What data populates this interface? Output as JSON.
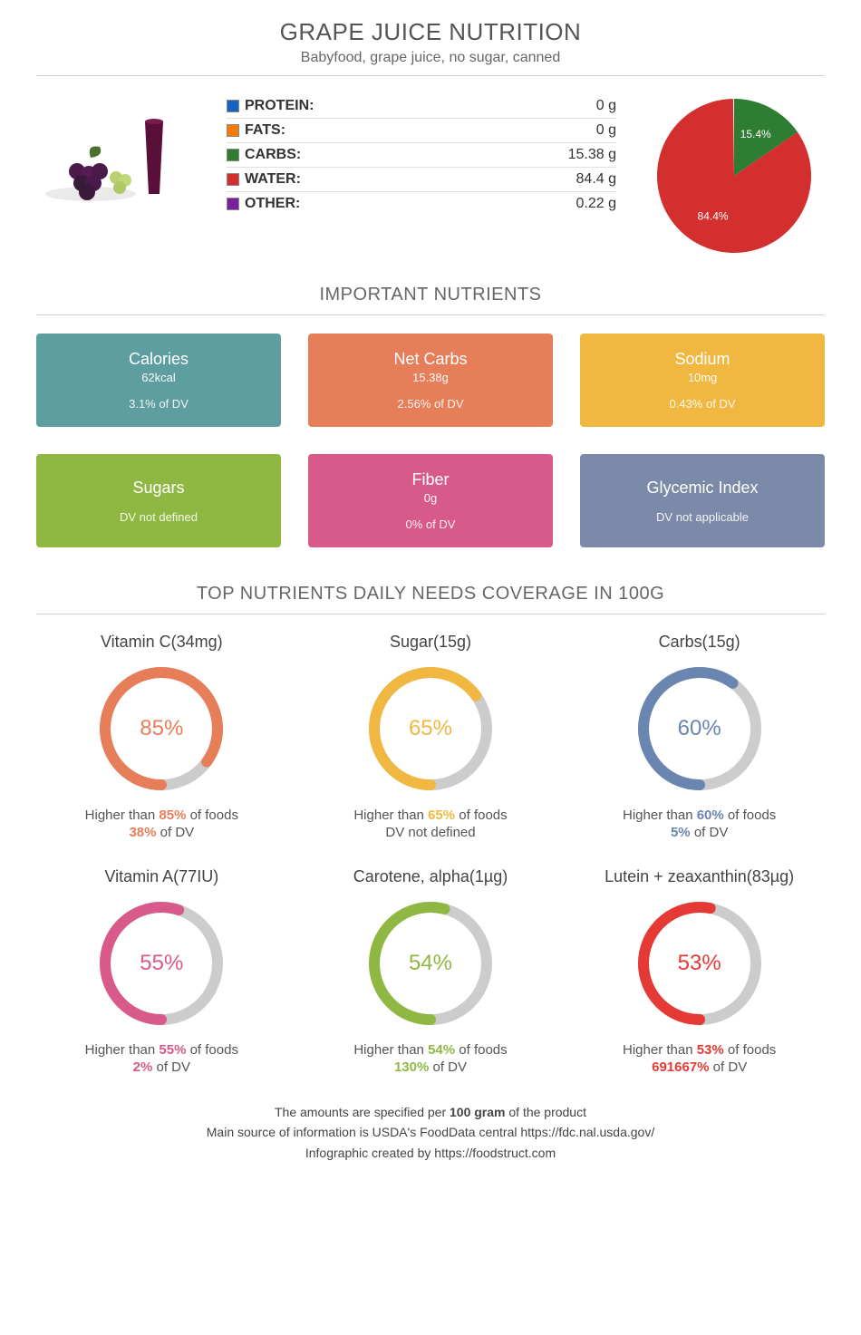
{
  "header": {
    "title": "GRAPE JUICE NUTRITION",
    "subtitle": "Babyfood, grape juice, no sugar, canned"
  },
  "macros": {
    "rows": [
      {
        "label": "PROTEIN:",
        "value": "0 g",
        "color": "#1565c0"
      },
      {
        "label": "FATS:",
        "value": "0 g",
        "color": "#f57c00"
      },
      {
        "label": "CARBS:",
        "value": "15.38 g",
        "color": "#2e7d32"
      },
      {
        "label": "WATER:",
        "value": "84.4 g",
        "color": "#d32f2f"
      },
      {
        "label": "OTHER:",
        "value": "0.22 g",
        "color": "#7b1fa2"
      }
    ],
    "pie": {
      "slices": [
        {
          "label": "15.4%",
          "pct": 15.4,
          "color": "#2e7d32",
          "label_color": "#ffffff"
        },
        {
          "label": "84.4%",
          "pct": 84.4,
          "color": "#d32f2f",
          "label_color": "#ffffff"
        }
      ],
      "other_pct": 0.22,
      "other_color": "#7b1fa2",
      "bg": "#ffffff",
      "radius": 85
    }
  },
  "important_title": "IMPORTANT NUTRIENTS",
  "cards": [
    {
      "name": "Calories",
      "value": "62kcal",
      "dv": "3.1% of DV",
      "bg": "#5f9ea0"
    },
    {
      "name": "Net Carbs",
      "value": "15.38g",
      "dv": "2.56% of DV",
      "bg": "#e67e5a"
    },
    {
      "name": "Sodium",
      "value": "10mg",
      "dv": "0.43% of DV",
      "bg": "#f0b840"
    },
    {
      "name": "Sugars",
      "value": "",
      "dv": "DV not defined",
      "bg": "#8fb843"
    },
    {
      "name": "Fiber",
      "value": "0g",
      "dv": "0% of DV",
      "bg": "#d85a8a"
    },
    {
      "name": "Glycemic Index",
      "value": "",
      "dv": "DV not applicable",
      "bg": "#7a8aa8"
    }
  ],
  "coverage_title": "TOP NUTRIENTS DAILY NEEDS COVERAGE IN 100G",
  "donuts": [
    {
      "title": "Vitamin C(34mg)",
      "pct": 85,
      "color": "#e67e5a",
      "pct_label": "85%",
      "line1_pre": "Higher than ",
      "line1_b": "85%",
      "line1_post": " of foods",
      "line2_b": "38%",
      "line2_post": " of DV",
      "line2_plain": ""
    },
    {
      "title": "Sugar(15g)",
      "pct": 65,
      "color": "#f0b840",
      "pct_label": "65%",
      "line1_pre": "Higher than ",
      "line1_b": "65%",
      "line1_post": " of foods",
      "line2_b": "",
      "line2_post": "",
      "line2_plain": "DV not defined"
    },
    {
      "title": "Carbs(15g)",
      "pct": 60,
      "color": "#6a85b0",
      "pct_label": "60%",
      "line1_pre": "Higher than ",
      "line1_b": "60%",
      "line1_post": " of foods",
      "line2_b": "5%",
      "line2_post": " of DV",
      "line2_plain": ""
    },
    {
      "title": "Vitamin A(77IU)",
      "pct": 55,
      "color": "#d85a8a",
      "pct_label": "55%",
      "line1_pre": "Higher than ",
      "line1_b": "55%",
      "line1_post": " of foods",
      "line2_b": "2%",
      "line2_post": " of DV",
      "line2_plain": ""
    },
    {
      "title": "Carotene, alpha(1µg)",
      "pct": 54,
      "color": "#8fb843",
      "pct_label": "54%",
      "line1_pre": "Higher than ",
      "line1_b": "54%",
      "line1_post": " of foods",
      "line2_b": "130%",
      "line2_post": " of DV",
      "line2_plain": ""
    },
    {
      "title": "Lutein + zeaxanthin(83µg)",
      "pct": 53,
      "color": "#e53935",
      "pct_label": "53%",
      "line1_pre": "Higher than ",
      "line1_b": "53%",
      "line1_post": " of foods",
      "line2_b": "691667%",
      "line2_post": " of DV",
      "line2_plain": ""
    }
  ],
  "donut_track_color": "#cccccc",
  "donut_stroke_width": 12,
  "footer": {
    "line1_pre": "The amounts are specified per ",
    "line1_b": "100 gram",
    "line1_post": " of the product",
    "line2": "Main source of information is USDA's FoodData central https://fdc.nal.usda.gov/",
    "line3": "Infographic created by https://foodstruct.com"
  }
}
